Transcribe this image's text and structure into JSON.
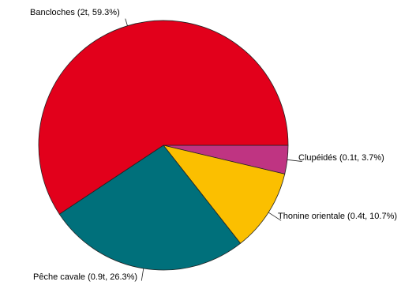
{
  "chart_data": {
    "type": "pie",
    "title": "",
    "slices": [
      {
        "name": "Clupéidés",
        "value": 0.1,
        "percent": 3.7,
        "label": "Clupéidés (0.1t, 3.7%)",
        "color": "#bf3482"
      },
      {
        "name": "Thonine orientale",
        "value": 0.4,
        "percent": 10.7,
        "label": "Thonine orientale (0.4t, 10.7%)",
        "color": "#fbbf00"
      },
      {
        "name": "Pêche cavale",
        "value": 0.9,
        "percent": 26.3,
        "label": "Pêche cavale (0.9t, 26.3%)",
        "color": "#00707b"
      },
      {
        "name": "Bancloches",
        "value": 2,
        "percent": 59.3,
        "label": "Bancloches (2t, 59.3%)",
        "color": "#e2001b"
      }
    ],
    "start": "3 o'clock",
    "direction": "clockwise",
    "legend": "none (direct labels)"
  }
}
